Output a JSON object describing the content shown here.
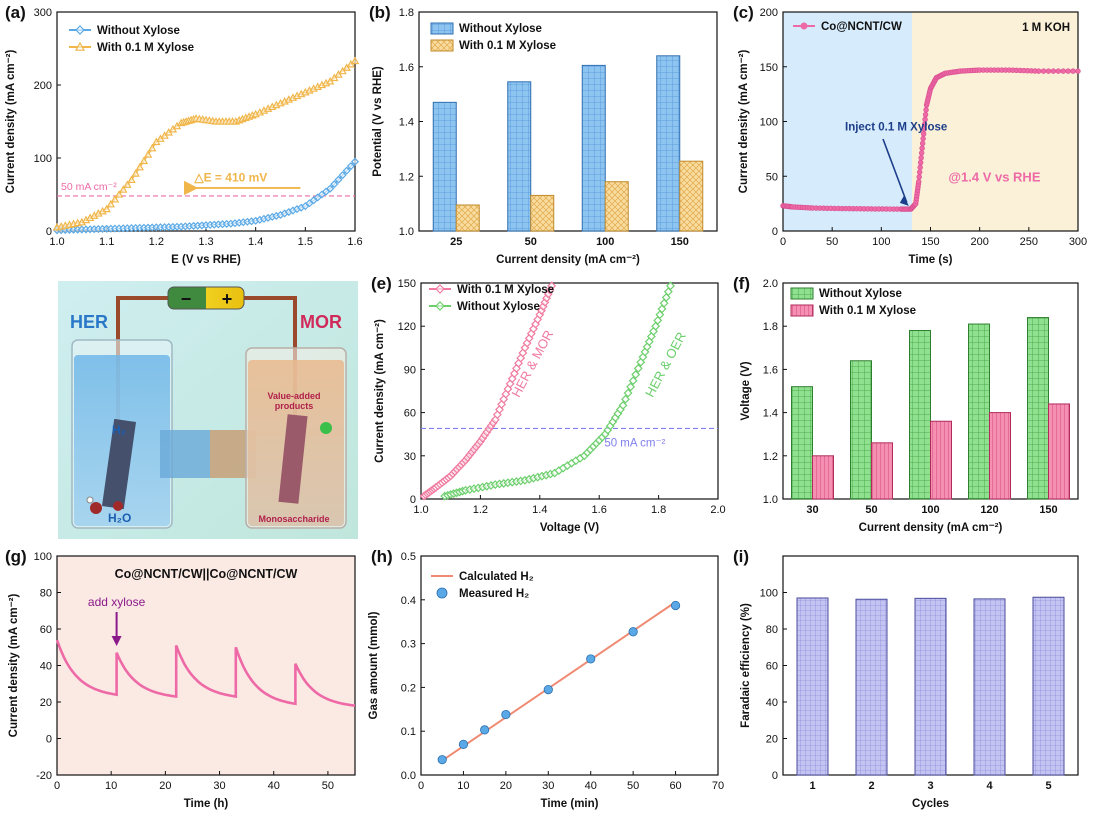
{
  "colors": {
    "blue": "#7ab8ea",
    "blue_dark": "#2f7fc8",
    "orange": "#f6cf86",
    "orange_dark": "#e3a73a",
    "green": "#7fd67f",
    "green_dark": "#3e9e3e",
    "pink": "#f07aa0",
    "pink_dark": "#c8386a",
    "lavender": "#b8b8ee",
    "lavender_dark": "#5555a8",
    "salmon": "#f08a72"
  },
  "panel_d": {
    "label": "(d)",
    "her": "HER",
    "mor": "MOR",
    "h2": "H₂",
    "h2o": "H₂O",
    "value_added_1": "Value-added",
    "value_added_2": "products",
    "monosaccharide": "Monosaccharide",
    "minus": "−",
    "plus": "+"
  },
  "chart_data": [
    {
      "id": "a",
      "label": "(a)",
      "type": "line",
      "xlabel": "E (V vs RHE)",
      "ylabel": "Current density (mA cm⁻²)",
      "xlim": [
        1.0,
        1.6
      ],
      "ylim": [
        0,
        300
      ],
      "xticks": [
        1.0,
        1.1,
        1.2,
        1.3,
        1.4,
        1.5,
        1.6
      ],
      "xticklabels": [
        "1.0",
        "1.1",
        "1.2",
        "1.3",
        "1.4",
        "1.5",
        "1.6"
      ],
      "yticks": [
        0,
        100,
        200,
        300
      ],
      "legend_position": "top-left",
      "series": [
        {
          "name": "Without Xylose",
          "color": "#5aa9e6",
          "marker": "diamond",
          "x": [
            1.0,
            1.05,
            1.1,
            1.15,
            1.2,
            1.25,
            1.3,
            1.35,
            1.4,
            1.45,
            1.5,
            1.55,
            1.6
          ],
          "y": [
            1,
            2,
            3,
            4,
            5,
            6,
            8,
            10,
            14,
            22,
            34,
            58,
            95
          ]
        },
        {
          "name": "With 0.1 M Xylose",
          "color": "#f0b64a",
          "marker": "triangle",
          "x": [
            1.0,
            1.05,
            1.1,
            1.15,
            1.2,
            1.25,
            1.28,
            1.32,
            1.36,
            1.4,
            1.45,
            1.5,
            1.55,
            1.6
          ],
          "y": [
            5,
            12,
            30,
            70,
            122,
            148,
            154,
            150,
            150,
            160,
            175,
            190,
            205,
            233
          ]
        }
      ],
      "hline": {
        "y": 48,
        "label": "50 mA cm⁻²",
        "color": "#ee6aa7"
      },
      "annotation": {
        "text": "△E = 410 mV",
        "x": 1.35,
        "y": 68,
        "color": "#f0b64a",
        "arrow_from": 1.49,
        "arrow_to": 1.27
      }
    },
    {
      "id": "b",
      "label": "(b)",
      "type": "bar",
      "xlabel": "Current density (mA cm⁻²)",
      "ylabel": "Potential (V vs RHE)",
      "categories": [
        "25",
        "50",
        "100",
        "150"
      ],
      "ylim": [
        1.0,
        1.8
      ],
      "yticks": [
        1.0,
        1.2,
        1.4,
        1.6,
        1.8
      ],
      "yticklabels": [
        "1.0",
        "1.2",
        "1.4",
        "1.6",
        "1.8"
      ],
      "legend_position": "top-left",
      "series": [
        {
          "name": "Without Xylose",
          "color": "#7ab8ea",
          "values": [
            1.47,
            1.545,
            1.605,
            1.64
          ]
        },
        {
          "name": "With 0.1 M Xylose",
          "color": "#f6cf86",
          "values": [
            1.095,
            1.13,
            1.18,
            1.255
          ]
        }
      ]
    },
    {
      "id": "c",
      "label": "(c)",
      "type": "line",
      "xlabel": "Time (s)",
      "ylabel": "Current density (mA cm⁻²)",
      "xlim": [
        0,
        300
      ],
      "ylim": [
        0,
        200
      ],
      "xticks": [
        0,
        50,
        100,
        150,
        200,
        250,
        300
      ],
      "yticks": [
        0,
        50,
        100,
        150,
        200
      ],
      "legend_position": "top-left",
      "series": [
        {
          "name": "Co@NCNT/CW",
          "color": "#ee6aa7",
          "x": [
            0,
            10,
            30,
            60,
            90,
            120,
            130,
            135,
            138,
            142,
            146,
            150,
            156,
            165,
            180,
            200,
            230,
            260,
            300
          ],
          "y": [
            23,
            22,
            21,
            20.5,
            20.2,
            20,
            20,
            25,
            45,
            80,
            115,
            130,
            140,
            144,
            146,
            147,
            147,
            146,
            146
          ]
        }
      ],
      "inject_time": 130,
      "texts": {
        "electrolyte": "1 M KOH",
        "inject": "Inject 0.1 M Xylose",
        "potential": "@1.4 V vs RHE"
      }
    },
    {
      "id": "e",
      "label": "(e)",
      "type": "line",
      "xlabel": "Voltage (V)",
      "ylabel": "Current density (mA cm⁻²)",
      "xlim": [
        1.0,
        2.0
      ],
      "ylim": [
        0,
        150
      ],
      "xticks": [
        1.0,
        1.2,
        1.4,
        1.6,
        1.8,
        2.0
      ],
      "xticklabels": [
        "1.0",
        "1.2",
        "1.4",
        "1.6",
        "1.8",
        "2.0"
      ],
      "yticks": [
        0,
        30,
        60,
        90,
        120,
        150
      ],
      "legend_position": "top-left",
      "series": [
        {
          "name": "With 0.1 M Xylose",
          "color": "#f07aa0",
          "marker": "diamond",
          "x": [
            1.01,
            1.05,
            1.1,
            1.15,
            1.2,
            1.25,
            1.3,
            1.35,
            1.4,
            1.44
          ],
          "y": [
            2,
            8,
            16,
            27,
            40,
            55,
            80,
            105,
            128,
            148
          ]
        },
        {
          "name": "Without Xylose",
          "color": "#6ccf6c",
          "marker": "diamond",
          "x": [
            1.08,
            1.15,
            1.25,
            1.35,
            1.45,
            1.55,
            1.62,
            1.68,
            1.74,
            1.79,
            1.84
          ],
          "y": [
            2,
            6,
            10,
            13,
            18,
            30,
            45,
            65,
            95,
            120,
            148
          ]
        }
      ],
      "hline": {
        "y": 49,
        "label": "50 mA cm⁻²",
        "color": "#7f7fee"
      },
      "texts": {
        "her_mor": "HER & MOR",
        "her_oer": "HER & OER"
      }
    },
    {
      "id": "f",
      "label": "(f)",
      "type": "bar",
      "xlabel": "Current density (mA cm⁻²)",
      "ylabel": "Voltage (V)",
      "categories": [
        "30",
        "50",
        "100",
        "120",
        "150"
      ],
      "ylim": [
        1.0,
        2.0
      ],
      "yticks": [
        1.0,
        1.2,
        1.4,
        1.6,
        1.8,
        2.0
      ],
      "yticklabels": [
        "1.0",
        "1.2",
        "1.4",
        "1.6",
        "1.8",
        "2.0"
      ],
      "legend_position": "top-left",
      "series": [
        {
          "name": "Without Xylose",
          "color": "#7fd67f",
          "values": [
            1.52,
            1.64,
            1.78,
            1.81,
            1.84
          ]
        },
        {
          "name": "With 0.1 M Xylose",
          "color": "#f07aa0",
          "values": [
            1.2,
            1.26,
            1.36,
            1.4,
            1.44
          ]
        }
      ]
    },
    {
      "id": "g",
      "label": "(g)",
      "type": "line",
      "xlabel": "Time (h)",
      "ylabel": "Current density (mA cm⁻²)",
      "xlim": [
        0,
        55
      ],
      "ylim": [
        -20,
        100
      ],
      "xticks": [
        0,
        10,
        20,
        30,
        40,
        50
      ],
      "yticks": [
        -20,
        0,
        20,
        40,
        60,
        80,
        100
      ],
      "series": [
        {
          "name": "",
          "color": "#ee6aa7",
          "segments": [
            {
              "x0": 0,
              "x1": 11,
              "y0": 54,
              "y1": 24
            },
            {
              "x0": 11,
              "x1": 22,
              "y0": 47,
              "y1": 23
            },
            {
              "x0": 22,
              "x1": 33,
              "y0": 51,
              "y1": 23
            },
            {
              "x0": 33,
              "x1": 44,
              "y0": 50,
              "y1": 19
            },
            {
              "x0": 44,
              "x1": 55,
              "y0": 41,
              "y1": 18
            }
          ]
        }
      ],
      "title": "Co@NCNT/CW||Co@NCNT/CW",
      "annotation": {
        "text": "add xylose",
        "x": 11
      }
    },
    {
      "id": "h",
      "label": "(h)",
      "type": "scatter",
      "xlabel": "Time (min)",
      "ylabel": "Gas amount (mmol)",
      "xlim": [
        0,
        70
      ],
      "ylim": [
        0.0,
        0.5
      ],
      "xticks": [
        0,
        10,
        20,
        30,
        40,
        50,
        60,
        70
      ],
      "yticks": [
        0.0,
        0.1,
        0.2,
        0.3,
        0.4,
        0.5
      ],
      "yticklabels": [
        "0.0",
        "0.1",
        "0.2",
        "0.3",
        "0.4",
        "0.5"
      ],
      "legend_position": "top-left",
      "series": [
        {
          "name": "Calculated H₂",
          "color": "#f08a72",
          "kind": "line",
          "x": [
            5,
            60
          ],
          "y": [
            0.033,
            0.395
          ]
        },
        {
          "name": "Measured H₂",
          "color": "#5aa9e6",
          "kind": "points",
          "x": [
            5,
            10,
            15,
            20,
            30,
            40,
            50,
            60
          ],
          "y": [
            0.035,
            0.07,
            0.103,
            0.138,
            0.195,
            0.265,
            0.327,
            0.387
          ]
        }
      ]
    },
    {
      "id": "i",
      "label": "(i)",
      "type": "bar",
      "xlabel": "Cycles",
      "ylabel": "Faradaic efficiency (%)",
      "categories": [
        "1",
        "2",
        "3",
        "4",
        "5"
      ],
      "ylim": [
        0,
        120
      ],
      "yticks": [
        0,
        20,
        40,
        60,
        80,
        100
      ],
      "series": [
        {
          "name": "",
          "color": "#b8b8ee",
          "values": [
            97.0,
            96.3,
            96.8,
            96.5,
            97.4
          ]
        }
      ]
    }
  ]
}
